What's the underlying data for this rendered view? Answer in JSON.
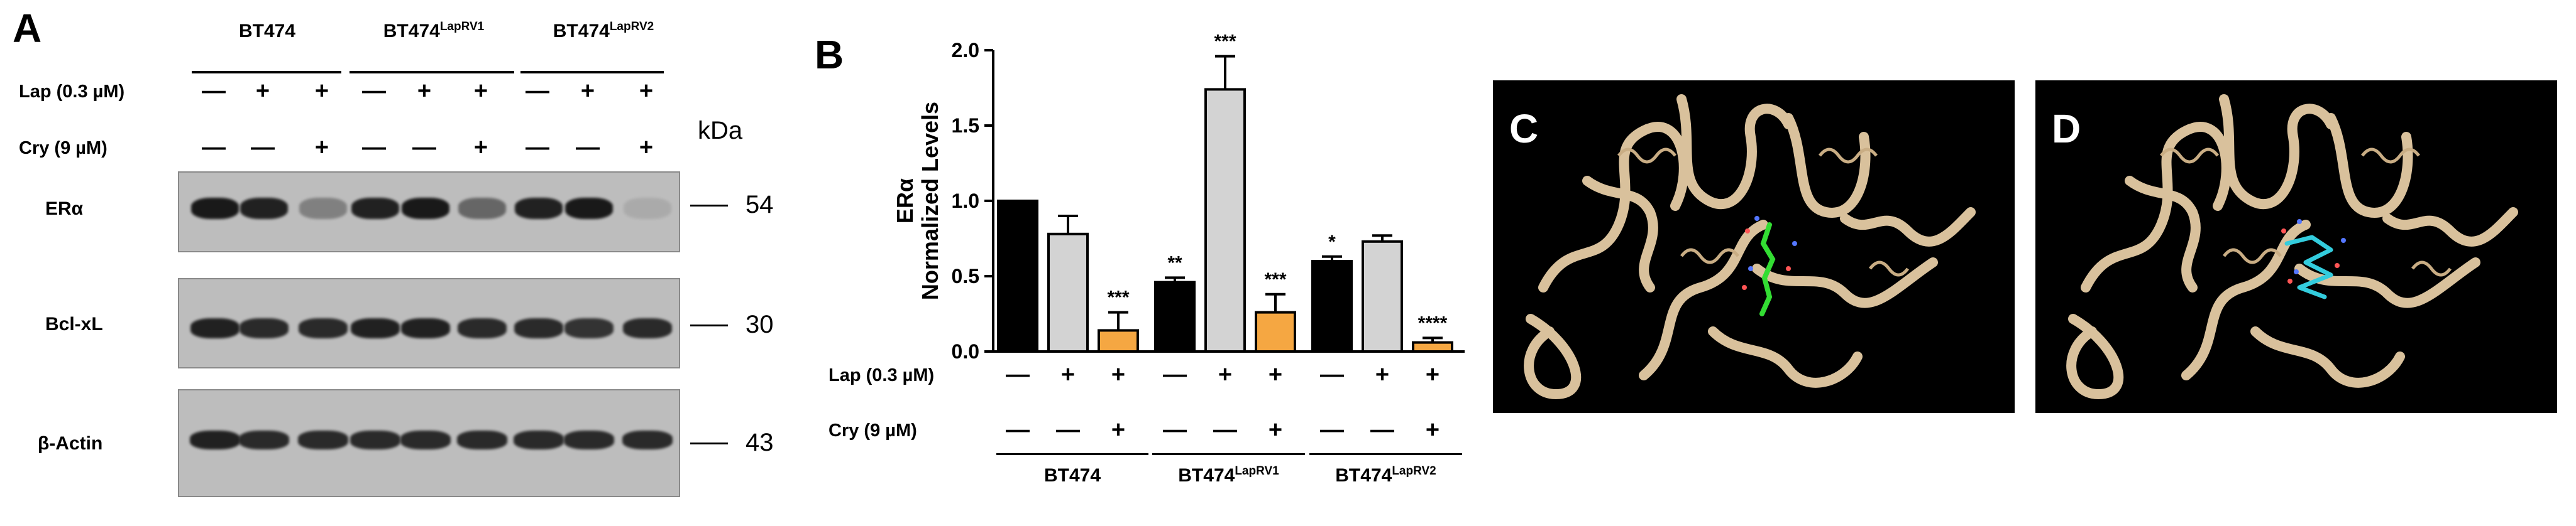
{
  "panel_a": {
    "label": "A",
    "headers": [
      {
        "main": "BT474",
        "sup": ""
      },
      {
        "main": "BT474",
        "sup": "LapRV1"
      },
      {
        "main": "BT474",
        "sup": "LapRV2"
      }
    ],
    "lap_label": "Lap (0.3 µM)",
    "cry_label": "Cry (9 µM)",
    "lap_row": [
      "—",
      "+",
      "+",
      "—",
      "+",
      "+",
      "—",
      "+",
      "+"
    ],
    "cry_row": [
      "—",
      "—",
      "+",
      "—",
      "—",
      "+",
      "—",
      "—",
      "+"
    ],
    "kda_label": "kDa",
    "blots": [
      {
        "name": "ERα",
        "kda": "54"
      },
      {
        "name": "Bcl-xL",
        "kda": "30"
      },
      {
        "name": "β-Actin",
        "kda": "43"
      }
    ],
    "band_intensity": {
      "era": [
        0.95,
        0.9,
        0.35,
        0.9,
        0.95,
        0.5,
        0.9,
        0.95,
        0.1
      ],
      "bclxl": [
        0.9,
        0.85,
        0.85,
        0.9,
        0.9,
        0.85,
        0.85,
        0.8,
        0.85
      ],
      "actin": [
        0.9,
        0.85,
        0.85,
        0.85,
        0.85,
        0.85,
        0.85,
        0.85,
        0.85
      ]
    }
  },
  "panel_b": {
    "label": "B",
    "lap_label": "Lap (0.3 µM)",
    "cry_label": "Cry (9 µM)",
    "lap_row": [
      "—",
      "+",
      "+",
      "—",
      "+",
      "+",
      "—",
      "+",
      "+"
    ],
    "cry_row": [
      "—",
      "—",
      "+",
      "—",
      "—",
      "+",
      "—",
      "—",
      "+"
    ],
    "groups": [
      {
        "main": "BT474",
        "sup": ""
      },
      {
        "main": "BT474",
        "sup": "LapRV1"
      },
      {
        "main": "BT474",
        "sup": "LapRV2"
      }
    ]
  },
  "chart_data": {
    "type": "bar",
    "ylabel_line1": "ERα",
    "ylabel_line2": "Normalized Levels",
    "ylim": [
      0,
      2.0
    ],
    "yticks": [
      "0.0",
      "0.5",
      "1.0",
      "1.5",
      "2.0"
    ],
    "values": [
      1.0,
      0.78,
      0.14,
      0.46,
      1.74,
      0.26,
      0.6,
      0.73,
      0.06
    ],
    "errors": [
      0,
      0.12,
      0.12,
      0.03,
      0.22,
      0.12,
      0.03,
      0.04,
      0.03
    ],
    "colors": [
      "#000000",
      "#d3d3d3",
      "#f5a742",
      "#000000",
      "#d3d3d3",
      "#f5a742",
      "#000000",
      "#d3d3d3",
      "#f5a742"
    ],
    "annotations": [
      "",
      "",
      "***",
      "**",
      "***",
      "***",
      "*",
      "",
      "****"
    ],
    "grid": false
  },
  "panel_c": {
    "label": "C",
    "ligand_color": "#33dd33"
  },
  "panel_d": {
    "label": "D",
    "ligand_color": "#33ccdd"
  }
}
